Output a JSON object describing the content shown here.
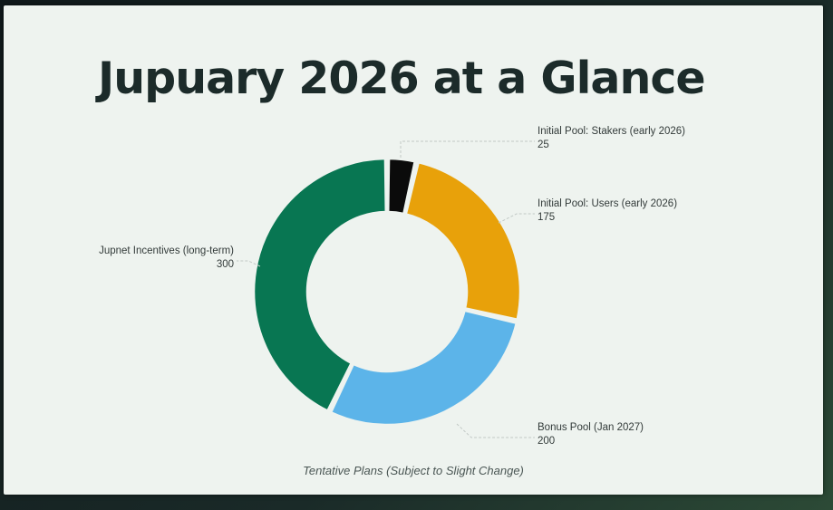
{
  "slide": {
    "title": "Jupuary 2026 at a Glance",
    "caption": "Tentative Plans (Subject to Slight Change)"
  },
  "chart_data": {
    "type": "pie",
    "title": "Jupuary 2026 at a Glance",
    "donut": true,
    "categories": [
      "Initial Pool: Stakers (early 2026)",
      "Initial Pool: Users (early 2026)",
      "Bonus Pool (Jan 2027)",
      "Jupnet Incentives (long-term)"
    ],
    "values": [
      25,
      175,
      200,
      300
    ],
    "value_labels": [
      "25",
      "175",
      "200",
      "300"
    ],
    "colors": [
      "#0b0b0b",
      "#e8a10a",
      "#5cb4e9",
      "#087652"
    ],
    "start_angle_deg": 0,
    "direction": "clockwise"
  }
}
